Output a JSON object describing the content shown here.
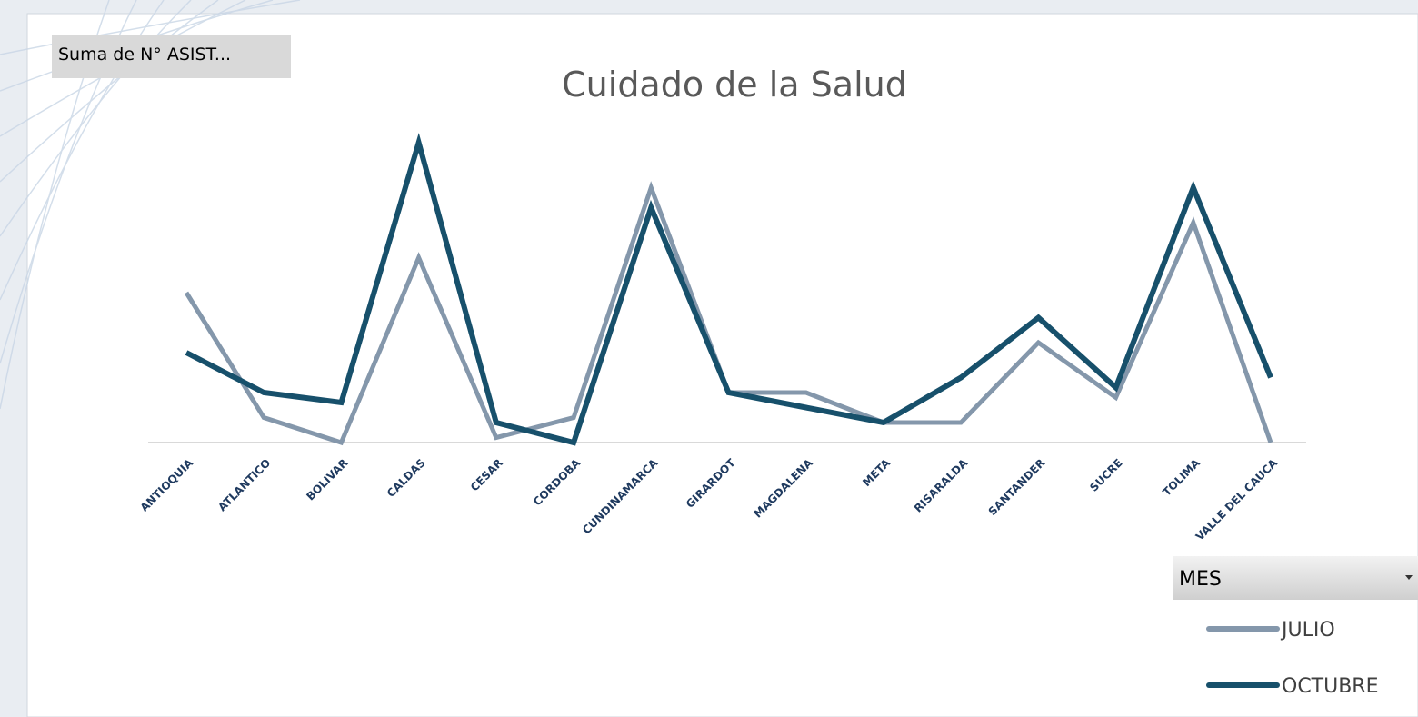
{
  "chart_data": {
    "type": "line",
    "title": "Cuidado de la Salud",
    "value_field_button": "Suma de N° ASIST...",
    "legend_title": "MES",
    "legend_position": "bottom-right",
    "categories": [
      "ANTIOQUIA",
      "ATLANTICO",
      "BOLIVAR",
      "CALDAS",
      "CESAR",
      "CORDOBA",
      "CUNDINAMARCA",
      "GIRARDOT",
      "MAGDALENA",
      "META",
      "RISARALDA",
      "SANTANDER",
      "SUCRE",
      "TOLIMA",
      "VALLE DEL CAUCA"
    ],
    "series": [
      {
        "name": "JULIO",
        "color": "#8497ab",
        "values": [
          15,
          2.5,
          0,
          18.5,
          0.5,
          2.5,
          25.5,
          5,
          5,
          2,
          2,
          10,
          4.5,
          22,
          0
        ]
      },
      {
        "name": "OCTUBRE",
        "color": "#17506b",
        "values": [
          9,
          5,
          4,
          30,
          2,
          0,
          23.5,
          5,
          3.5,
          2,
          6.5,
          12.5,
          5.5,
          25.5,
          6.5
        ]
      }
    ]
  }
}
